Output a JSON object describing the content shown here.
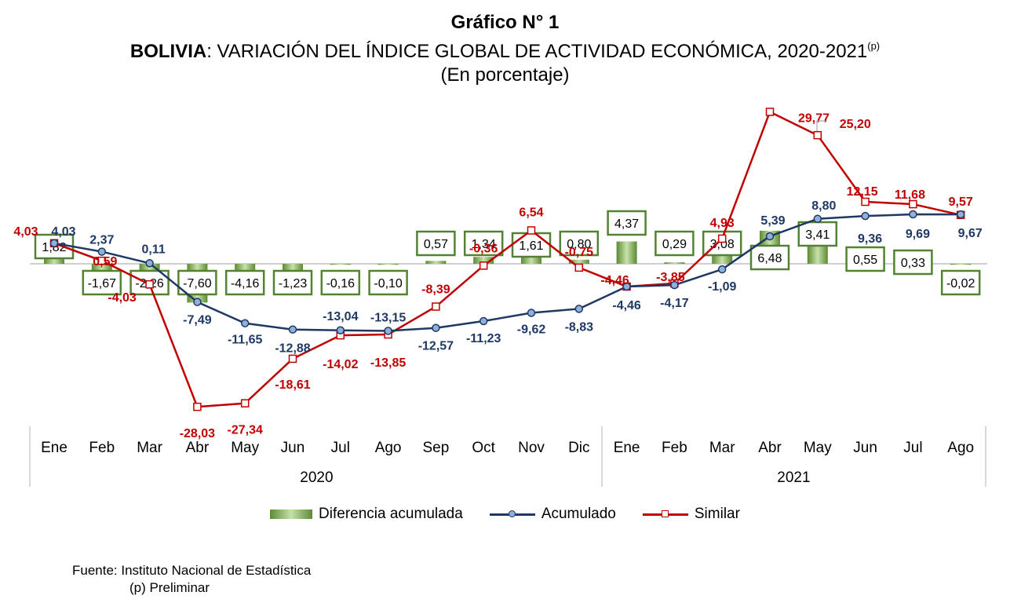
{
  "header": {
    "title": "Gráfico N° 1",
    "subtitle_bold": "BOLIVIA",
    "subtitle_rest": ": VARIACIÓN DEL ÍNDICE GLOBAL DE ACTIVIDAD ECONÓMICA, 2020-2021",
    "subtitle_sup": "(p)",
    "units": "(En porcentaje)"
  },
  "chart_data": {
    "type": "line",
    "categories": [
      "Ene",
      "Feb",
      "Mar",
      "Abr",
      "May",
      "Jun",
      "Jul",
      "Ago",
      "Sep",
      "Oct",
      "Nov",
      "Dic",
      "Ene",
      "Feb",
      "Mar",
      "Abr",
      "May",
      "Jun",
      "Jul",
      "Ago"
    ],
    "years": [
      {
        "label": "2020",
        "start": 0,
        "end": 11
      },
      {
        "label": "2021",
        "start": 12,
        "end": 19
      }
    ],
    "series": [
      {
        "name": "Diferencia acumulada",
        "kind": "bar",
        "color": "#6f9a46",
        "values": [
          1.82,
          -1.67,
          -2.26,
          -7.6,
          -4.16,
          -1.23,
          -0.16,
          -0.1,
          0.57,
          1.34,
          1.61,
          0.8,
          4.37,
          0.29,
          3.08,
          6.48,
          3.41,
          0.55,
          0.33,
          -0.02
        ],
        "labels": [
          "1,82",
          "-1,67",
          "-2,26",
          "-7,60",
          "-4,16",
          "-1,23",
          "-0,16",
          "-0,10",
          "0,57",
          "1,34",
          "1,61",
          "0,80",
          "4,37",
          "0,29",
          "3,08",
          "6,48",
          "3,41",
          "0,55",
          "0,33",
          "-0,02"
        ]
      },
      {
        "name": "Acumulado",
        "kind": "line",
        "color": "#1f3864",
        "values": [
          4.03,
          2.37,
          0.11,
          -7.49,
          -11.65,
          -12.88,
          -13.04,
          -13.15,
          -12.57,
          -11.23,
          -9.62,
          -8.83,
          -4.46,
          -4.17,
          -1.09,
          5.39,
          8.8,
          9.36,
          9.69,
          9.67
        ],
        "labels": [
          "4,03",
          "2,37",
          "0,11",
          "-7,49",
          "-11,65",
          "-12,88",
          "-13,04",
          "-13,15",
          "-12,57",
          "-11,23",
          "-9,62",
          "-8,83",
          "-4,46",
          "-4,17",
          "-1,09",
          "5,39",
          "8,80",
          "9,36",
          "9,69",
          "9,67"
        ]
      },
      {
        "name": "Similar",
        "kind": "line",
        "color": "#c00000",
        "values": [
          4.03,
          0.59,
          -4.03,
          -28.03,
          -27.34,
          -18.61,
          -14.02,
          -13.85,
          -8.39,
          -0.36,
          6.54,
          -0.75,
          -4.46,
          -3.85,
          4.93,
          29.77,
          25.2,
          12.15,
          11.68,
          9.57
        ],
        "labels": [
          "4,03",
          "0,59",
          "-4,03",
          "-28,03",
          "-27,34",
          "-18,61",
          "-14,02",
          "-13,85",
          "-8,39",
          "-0,36",
          "6,54",
          "-0,75",
          "-4,46",
          "-3,85",
          "4,93",
          "29,77",
          "25,20",
          "12,15",
          "11,68",
          "9,57"
        ]
      }
    ],
    "ylim": [
      -30,
      32
    ],
    "grid": false,
    "legend_position": "bottom"
  },
  "source": {
    "line1": "Fuente: Instituto Nacional de Estadística",
    "line2": "(p) Preliminar"
  }
}
